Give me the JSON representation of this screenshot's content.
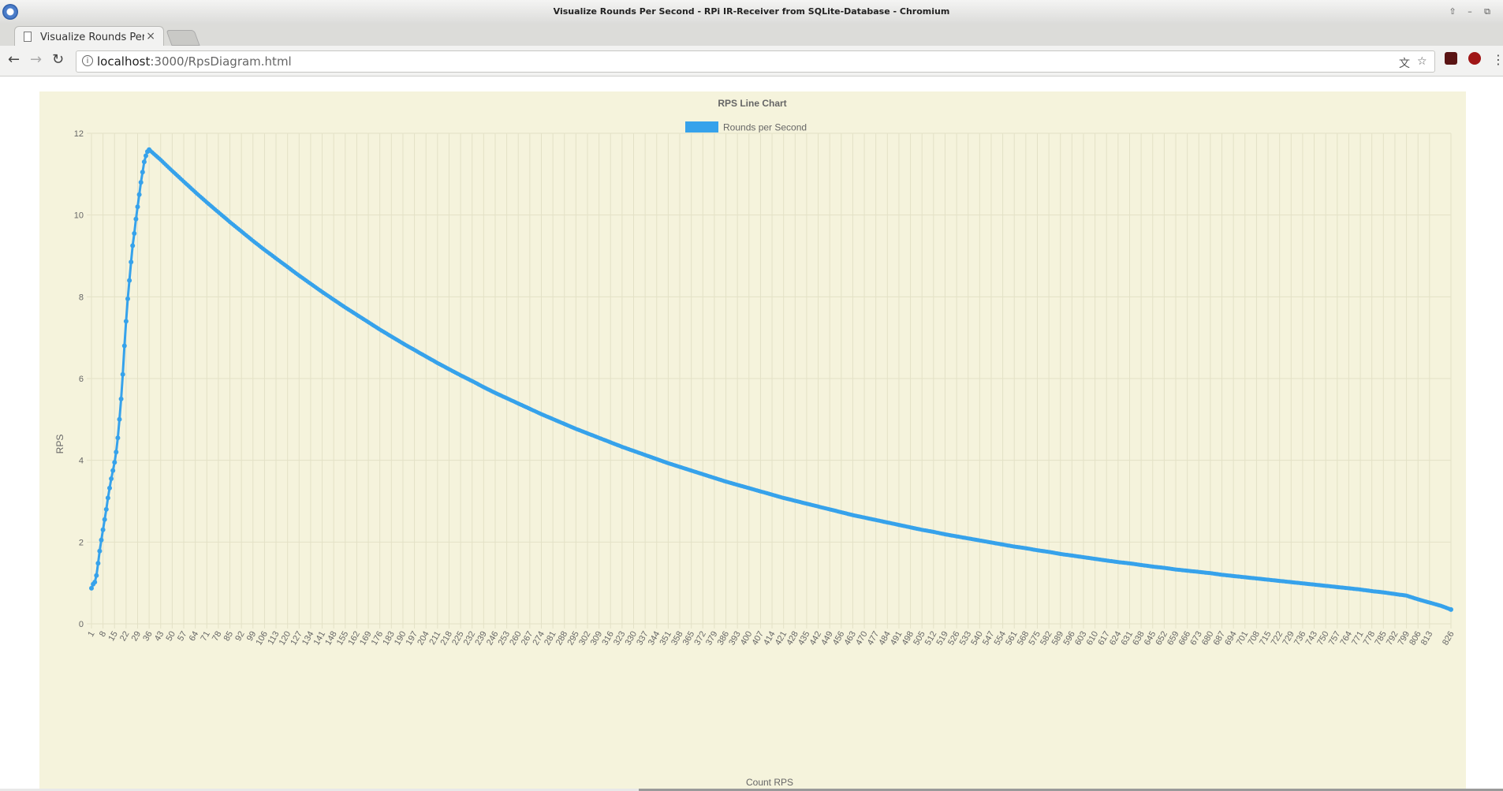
{
  "window": {
    "title": "Visualize Rounds Per Second - RPi IR-Receiver from SQLite-Database - Chromium",
    "controls": [
      "⇧",
      "–",
      "⧉"
    ]
  },
  "tabs": [
    {
      "label": "Visualize Rounds Per Second - RPi IR-Receiver from SQLite-Database",
      "close": "×"
    }
  ],
  "toolbar": {
    "back": "←",
    "forward": "→",
    "reload": "↻",
    "info_icon": "i",
    "url_host": "localhost",
    "url_rest": ":3000/RpsDiagram.html",
    "translate_icon": "文",
    "star_icon": "☆",
    "menu_icon": "⋮"
  },
  "colors": {
    "line": "#36a2eb",
    "panel": "#f5f3dc",
    "grid": "#e3e1c6",
    "text": "#666666"
  },
  "chart_data": {
    "type": "line",
    "title": "RPS Line Chart",
    "legend": {
      "label": "Rounds per Second",
      "position": "top"
    },
    "xlabel": "Count RPS",
    "ylabel": "RPS",
    "ylim": [
      0,
      12
    ],
    "yticks": [
      0,
      2,
      4,
      6,
      8,
      10,
      12
    ],
    "x_range": [
      1,
      826
    ],
    "peak": {
      "x": 36,
      "y": 11.6
    },
    "rise_points": [
      [
        1,
        0.87
      ],
      [
        2,
        0.97
      ],
      [
        3,
        1.02
      ],
      [
        4,
        1.18
      ],
      [
        5,
        1.48
      ],
      [
        6,
        1.78
      ],
      [
        7,
        2.05
      ],
      [
        8,
        2.3
      ],
      [
        9,
        2.55
      ],
      [
        10,
        2.8
      ],
      [
        11,
        3.08
      ],
      [
        12,
        3.32
      ],
      [
        13,
        3.55
      ],
      [
        14,
        3.75
      ],
      [
        15,
        3.95
      ],
      [
        16,
        4.2
      ],
      [
        17,
        4.55
      ],
      [
        18,
        5.0
      ],
      [
        19,
        5.5
      ],
      [
        20,
        6.1
      ],
      [
        21,
        6.8
      ],
      [
        22,
        7.4
      ],
      [
        23,
        7.95
      ],
      [
        24,
        8.4
      ],
      [
        25,
        8.85
      ],
      [
        26,
        9.25
      ],
      [
        27,
        9.55
      ],
      [
        28,
        9.9
      ],
      [
        29,
        10.2
      ],
      [
        30,
        10.5
      ],
      [
        31,
        10.8
      ],
      [
        32,
        11.05
      ],
      [
        33,
        11.3
      ],
      [
        34,
        11.45
      ],
      [
        35,
        11.55
      ],
      [
        36,
        11.6
      ]
    ],
    "decay_points": [
      [
        36,
        11.6
      ],
      [
        43,
        11.35
      ],
      [
        50,
        11.08
      ],
      [
        57,
        10.82
      ],
      [
        64,
        10.56
      ],
      [
        71,
        10.31
      ],
      [
        78,
        10.07
      ],
      [
        85,
        9.83
      ],
      [
        92,
        9.6
      ],
      [
        99,
        9.37
      ],
      [
        106,
        9.15
      ],
      [
        113,
        8.94
      ],
      [
        120,
        8.73
      ],
      [
        127,
        8.52
      ],
      [
        134,
        8.32
      ],
      [
        141,
        8.12
      ],
      [
        148,
        7.93
      ],
      [
        155,
        7.74
      ],
      [
        162,
        7.56
      ],
      [
        169,
        7.38
      ],
      [
        176,
        7.2
      ],
      [
        183,
        7.03
      ],
      [
        190,
        6.86
      ],
      [
        197,
        6.7
      ],
      [
        204,
        6.54
      ],
      [
        211,
        6.38
      ],
      [
        218,
        6.23
      ],
      [
        225,
        6.08
      ],
      [
        232,
        5.94
      ],
      [
        239,
        5.79
      ],
      [
        246,
        5.65
      ],
      [
        253,
        5.52
      ],
      [
        260,
        5.39
      ],
      [
        267,
        5.26
      ],
      [
        274,
        5.13
      ],
      [
        281,
        5.01
      ],
      [
        288,
        4.89
      ],
      [
        295,
        4.77
      ],
      [
        302,
        4.66
      ],
      [
        309,
        4.55
      ],
      [
        316,
        4.44
      ],
      [
        323,
        4.33
      ],
      [
        330,
        4.23
      ],
      [
        337,
        4.13
      ],
      [
        344,
        4.03
      ],
      [
        351,
        3.93
      ],
      [
        358,
        3.84
      ],
      [
        365,
        3.75
      ],
      [
        372,
        3.66
      ],
      [
        379,
        3.57
      ],
      [
        386,
        3.48
      ],
      [
        393,
        3.4
      ],
      [
        400,
        3.32
      ],
      [
        407,
        3.24
      ],
      [
        414,
        3.16
      ],
      [
        421,
        3.08
      ],
      [
        428,
        3.01
      ],
      [
        435,
        2.94
      ],
      [
        442,
        2.87
      ],
      [
        449,
        2.8
      ],
      [
        456,
        2.73
      ],
      [
        463,
        2.66
      ],
      [
        470,
        2.6
      ],
      [
        477,
        2.54
      ],
      [
        484,
        2.48
      ],
      [
        491,
        2.42
      ],
      [
        498,
        2.36
      ],
      [
        505,
        2.3
      ],
      [
        512,
        2.25
      ],
      [
        519,
        2.19
      ],
      [
        526,
        2.14
      ],
      [
        533,
        2.09
      ],
      [
        540,
        2.04
      ],
      [
        547,
        1.99
      ],
      [
        554,
        1.94
      ],
      [
        561,
        1.89
      ],
      [
        568,
        1.85
      ],
      [
        575,
        1.8
      ],
      [
        582,
        1.76
      ],
      [
        589,
        1.71
      ],
      [
        596,
        1.67
      ],
      [
        603,
        1.63
      ],
      [
        610,
        1.59
      ],
      [
        617,
        1.55
      ],
      [
        624,
        1.51
      ],
      [
        631,
        1.48
      ],
      [
        638,
        1.44
      ],
      [
        645,
        1.4
      ],
      [
        652,
        1.37
      ],
      [
        659,
        1.33
      ],
      [
        666,
        1.3
      ],
      [
        673,
        1.27
      ],
      [
        680,
        1.24
      ],
      [
        687,
        1.2
      ],
      [
        694,
        1.17
      ],
      [
        701,
        1.14
      ],
      [
        708,
        1.11
      ],
      [
        715,
        1.08
      ],
      [
        722,
        1.05
      ],
      [
        729,
        1.02
      ],
      [
        736,
        0.99
      ],
      [
        743,
        0.96
      ],
      [
        750,
        0.93
      ],
      [
        757,
        0.9
      ],
      [
        764,
        0.87
      ],
      [
        771,
        0.84
      ],
      [
        778,
        0.8
      ],
      [
        785,
        0.77
      ],
      [
        792,
        0.73
      ],
      [
        799,
        0.69
      ],
      [
        806,
        0.6
      ],
      [
        813,
        0.52
      ],
      [
        820,
        0.44
      ],
      [
        826,
        0.35
      ]
    ],
    "xtick_labels": [
      "1",
      "8",
      "15",
      "22",
      "29",
      "36",
      "43",
      "50",
      "57",
      "64",
      "71",
      "78",
      "85",
      "92",
      "99",
      "106",
      "113",
      "120",
      "127",
      "134",
      "141",
      "148",
      "155",
      "162",
      "169",
      "176",
      "183",
      "190",
      "197",
      "204",
      "211",
      "218",
      "225",
      "232",
      "239",
      "246",
      "253",
      "260",
      "267",
      "274",
      "281",
      "288",
      "295",
      "302",
      "309",
      "316",
      "323",
      "330",
      "337",
      "344",
      "351",
      "358",
      "365",
      "372",
      "379",
      "386",
      "393",
      "400",
      "407",
      "414",
      "421",
      "428",
      "435",
      "442",
      "449",
      "456",
      "463",
      "470",
      "477",
      "484",
      "491",
      "498",
      "505",
      "512",
      "519",
      "526",
      "533",
      "540",
      "547",
      "554",
      "561",
      "568",
      "575",
      "582",
      "589",
      "596",
      "603",
      "610",
      "617",
      "624",
      "631",
      "638",
      "645",
      "652",
      "659",
      "666",
      "673",
      "680",
      "687",
      "694",
      "701",
      "708",
      "715",
      "722",
      "729",
      "736",
      "743",
      "750",
      "757",
      "764",
      "771",
      "778",
      "785",
      "792",
      "799",
      "806",
      "813",
      "826"
    ]
  }
}
